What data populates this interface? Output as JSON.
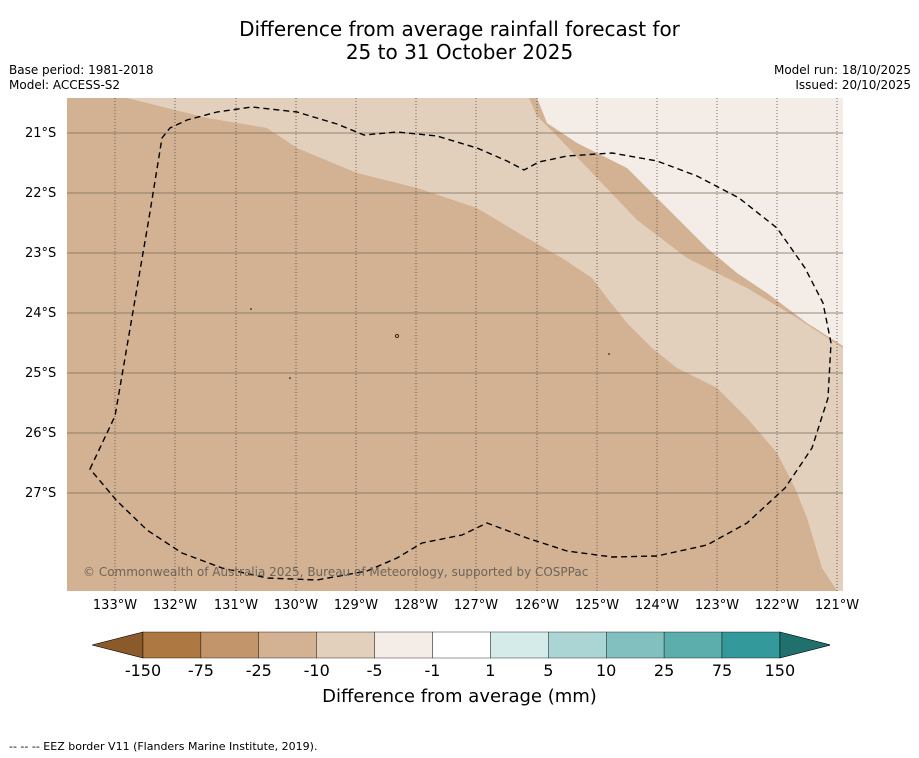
{
  "title_line1": "Difference from average rainfall forecast for",
  "title_line2": "25 to 31 October 2025",
  "base_period": "Base period: 1981-2018",
  "model": "Model: ACCESS-S2",
  "model_run": "Model run: 18/10/2025",
  "issued": "Issued: 20/10/2025",
  "copyright": "© Commonwealth of Australia 2025, Bureau of Meteorology, supported by COSPPac",
  "lat_labels": [
    "21°S",
    "22°S",
    "23°S",
    "24°S",
    "25°S",
    "26°S",
    "27°S"
  ],
  "lon_labels": [
    "133°W",
    "132°W",
    "131°W",
    "130°W",
    "129°W",
    "128°W",
    "127°W",
    "126°W",
    "125°W",
    "124°W",
    "123°W",
    "122°W",
    "121°W"
  ],
  "colorbar": {
    "title": "Difference from average (mm)",
    "labels": [
      "-150",
      "-75",
      "-25",
      "-10",
      "-5",
      "-1",
      "1",
      "5",
      "10",
      "25",
      "75",
      "150"
    ],
    "colors": [
      "#8a5a2b",
      "#ad7841",
      "#c2956b",
      "#d2b292",
      "#e2d0bd",
      "#f4ece6",
      "#ffffff",
      "#d4ebea",
      "#abd5d4",
      "#82c0bf",
      "#5caeac",
      "#34999a",
      "#20706e"
    ]
  },
  "map_colors": {
    "band_25_10": "#d2b292",
    "band_10_5": "#e2d0bd",
    "band_5_1": "#f4ece6",
    "grid": "#5a4a3a"
  },
  "footnote": "--  --  -- EEZ border V11 (Flanders Marine Institute, 2019)."
}
